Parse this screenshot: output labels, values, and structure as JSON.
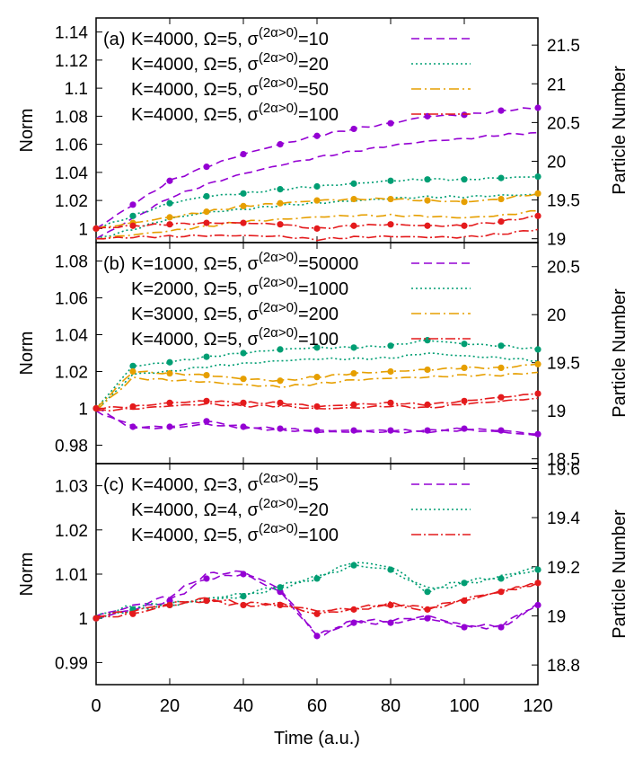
{
  "figure": {
    "xlabel": "Time (a.u.)",
    "x_ticks": [
      0,
      20,
      40,
      60,
      80,
      100,
      120
    ],
    "xlim": [
      0,
      120
    ]
  },
  "chart_data": [
    {
      "type": "line",
      "panel_label": "(a)",
      "ylabel": "Norm",
      "y2label": "Particle Number",
      "ylim": [
        0.99,
        1.15
      ],
      "y_ticks": [
        "1",
        "1.02",
        "1.04",
        "1.06",
        "1.08",
        "1.1",
        "1.12",
        "1.14"
      ],
      "y_tick_values": [
        1,
        1.02,
        1.04,
        1.06,
        1.08,
        1.1,
        1.12,
        1.14
      ],
      "y2lim": [
        18.95,
        21.85
      ],
      "y2_ticks": [
        "19",
        "19.5",
        "20",
        "20.5",
        "21",
        "21.5"
      ],
      "y2_tick_values": [
        19,
        19.5,
        20,
        20.5,
        21,
        21.5
      ],
      "legend_position": "top",
      "series": [
        {
          "label_pre": "K=4000, Ω=5, σ",
          "label_sup": "(2α>0)",
          "label_post": "=10",
          "color": "#9400d3",
          "dash": "9,5",
          "x": [
            0,
            10,
            20,
            30,
            40,
            50,
            60,
            70,
            80,
            90,
            100,
            110,
            120
          ],
          "values": [
            1.0,
            1.017,
            1.034,
            1.044,
            1.053,
            1.06,
            1.066,
            1.071,
            1.075,
            1.08,
            1.081,
            1.084,
            1.086
          ],
          "secondary": [
            19.0,
            19.26,
            19.53,
            19.7,
            19.84,
            19.95,
            20.05,
            20.13,
            20.2,
            20.26,
            20.29,
            20.34,
            20.37
          ]
        },
        {
          "label_pre": "K=4000, Ω=5, σ",
          "label_sup": "(2α>0)",
          "label_post": "=20",
          "color": "#009e73",
          "dash": "2,3",
          "x": [
            0,
            10,
            20,
            30,
            40,
            50,
            60,
            70,
            80,
            90,
            100,
            110,
            120
          ],
          "values": [
            1.0,
            1.009,
            1.018,
            1.023,
            1.025,
            1.028,
            1.03,
            1.032,
            1.034,
            1.035,
            1.035,
            1.036,
            1.037
          ],
          "secondary": [
            19.0,
            19.12,
            19.26,
            19.34,
            19.38,
            19.43,
            19.46,
            19.49,
            19.52,
            19.54,
            19.54,
            19.56,
            19.57
          ]
        },
        {
          "label_pre": "K=4000, Ω=5, σ",
          "label_sup": "(2α>0)",
          "label_post": "=50",
          "color": "#e69f00",
          "dash": "11,4,2,4",
          "x": [
            0,
            10,
            20,
            30,
            40,
            50,
            60,
            70,
            80,
            90,
            100,
            110,
            120
          ],
          "values": [
            1.0,
            1.004,
            1.008,
            1.012,
            1.016,
            1.018,
            1.02,
            1.021,
            1.021,
            1.02,
            1.019,
            1.021,
            1.025
          ],
          "secondary": [
            19.0,
            19.05,
            19.1,
            19.16,
            19.22,
            19.25,
            19.28,
            19.3,
            19.3,
            19.29,
            19.27,
            19.3,
            19.36
          ]
        },
        {
          "label_pre": "K=4000, Ω=5, σ",
          "label_sup": "(2α>0)",
          "label_post": "=100",
          "color": "#e41a1c",
          "dash": "11,3,2,3",
          "x": [
            0,
            10,
            20,
            30,
            40,
            50,
            60,
            70,
            80,
            90,
            100,
            110,
            120
          ],
          "values": [
            1.0,
            1.002,
            1.003,
            1.004,
            1.004,
            1.003,
            1.0,
            1.002,
            1.003,
            1.002,
            1.002,
            1.005,
            1.009
          ],
          "secondary": [
            19.0,
            19.02,
            19.03,
            19.04,
            19.04,
            19.03,
            18.99,
            19.02,
            19.03,
            19.02,
            19.02,
            19.06,
            19.12
          ]
        }
      ]
    },
    {
      "type": "line",
      "panel_label": "(b)",
      "ylabel": "Norm",
      "y2label": "Particle Number",
      "ylim": [
        0.97,
        1.09
      ],
      "y_ticks": [
        "0.98",
        "1",
        "1.02",
        "1.04",
        "1.06",
        "1.08"
      ],
      "y_tick_values": [
        0.98,
        1,
        1.02,
        1.04,
        1.06,
        1.08
      ],
      "y2lim": [
        18.45,
        20.75
      ],
      "y2_ticks": [
        "18.5",
        "19",
        "19.5",
        "20",
        "20.5"
      ],
      "y2_tick_values": [
        18.5,
        19,
        19.5,
        20,
        20.5
      ],
      "legend_position": "top",
      "series": [
        {
          "label_pre": "K=1000, Ω=5, σ",
          "label_sup": "(2α>0)",
          "label_post": "=50000",
          "color": "#9400d3",
          "dash": "9,5",
          "x": [
            0,
            10,
            20,
            30,
            40,
            50,
            60,
            70,
            80,
            90,
            100,
            110,
            120
          ],
          "values": [
            1.0,
            0.99,
            0.99,
            0.993,
            0.99,
            0.989,
            0.988,
            0.988,
            0.988,
            0.988,
            0.989,
            0.988,
            0.986
          ],
          "secondary": [
            19.0,
            18.82,
            18.82,
            18.86,
            18.82,
            18.8,
            18.78,
            18.78,
            18.78,
            18.78,
            18.8,
            18.78,
            18.74
          ]
        },
        {
          "label_pre": "K=2000, Ω=5, σ",
          "label_sup": "(2α>0)",
          "label_post": "=1000",
          "color": "#009e73",
          "dash": "2,3",
          "x": [
            0,
            10,
            20,
            30,
            40,
            50,
            60,
            70,
            80,
            90,
            100,
            110,
            120
          ],
          "values": [
            1.0,
            1.023,
            1.025,
            1.028,
            1.03,
            1.032,
            1.033,
            1.033,
            1.034,
            1.037,
            1.035,
            1.034,
            1.032
          ],
          "secondary": [
            19.0,
            19.38,
            19.41,
            19.46,
            19.49,
            19.52,
            19.54,
            19.54,
            19.55,
            19.6,
            19.57,
            19.55,
            19.52
          ]
        },
        {
          "label_pre": "K=3000, Ω=5, σ",
          "label_sup": "(2α>0)",
          "label_post": "=200",
          "color": "#e69f00",
          "dash": "11,4,2,4",
          "x": [
            0,
            10,
            20,
            30,
            40,
            50,
            60,
            70,
            80,
            90,
            100,
            110,
            120
          ],
          "values": [
            1.0,
            1.02,
            1.019,
            1.018,
            1.016,
            1.015,
            1.017,
            1.019,
            1.02,
            1.021,
            1.022,
            1.022,
            1.024
          ],
          "secondary": [
            19.0,
            19.34,
            19.32,
            19.3,
            19.27,
            19.25,
            19.28,
            19.32,
            19.34,
            19.35,
            19.37,
            19.37,
            19.4
          ]
        },
        {
          "label_pre": "K=4000, Ω=5, σ",
          "label_sup": "(2α>0)",
          "label_post": "=100",
          "color": "#e41a1c",
          "dash": "11,3,2,3",
          "x": [
            0,
            10,
            20,
            30,
            40,
            50,
            60,
            70,
            80,
            90,
            100,
            110,
            120
          ],
          "values": [
            1.0,
            1.001,
            1.003,
            1.004,
            1.003,
            1.003,
            1.001,
            1.002,
            1.003,
            1.002,
            1.004,
            1.006,
            1.008
          ],
          "secondary": [
            19.0,
            19.02,
            19.05,
            19.07,
            19.05,
            19.05,
            19.02,
            19.03,
            19.05,
            19.03,
            19.07,
            19.1,
            19.13
          ]
        }
      ]
    },
    {
      "type": "line",
      "panel_label": "(c)",
      "ylabel": "Norm",
      "y2label": "Particle Number",
      "ylim": [
        0.985,
        1.035
      ],
      "y_ticks": [
        "0.99",
        "1",
        "1.01",
        "1.02",
        "1.03"
      ],
      "y_tick_values": [
        0.99,
        1,
        1.01,
        1.02,
        1.03
      ],
      "y2lim": [
        18.72,
        19.62
      ],
      "y2_ticks": [
        "18.8",
        "19",
        "19.2",
        "19.4",
        "19.6"
      ],
      "y2_tick_values": [
        18.8,
        19,
        19.2,
        19.4,
        19.6
      ],
      "legend_position": "top",
      "series": [
        {
          "label_pre": "K=4000, Ω=3, σ",
          "label_sup": "(2α>0)",
          "label_post": "=5",
          "color": "#9400d3",
          "dash": "9,5",
          "x": [
            0,
            10,
            20,
            30,
            40,
            50,
            60,
            70,
            80,
            90,
            100,
            110,
            120
          ],
          "values": [
            1.0,
            1.002,
            1.004,
            1.009,
            1.01,
            1.006,
            0.996,
            0.999,
            0.999,
            1.0,
            0.998,
            0.998,
            1.003
          ],
          "secondary": [
            19.0,
            19.04,
            19.08,
            19.17,
            19.18,
            19.11,
            18.92,
            18.98,
            18.98,
            19.0,
            18.96,
            18.96,
            19.05
          ]
        },
        {
          "label_pre": "K=4000, Ω=4, σ",
          "label_sup": "(2α>0)",
          "label_post": "=20",
          "color": "#009e73",
          "dash": "2,3",
          "x": [
            0,
            10,
            20,
            30,
            40,
            50,
            60,
            70,
            80,
            90,
            100,
            110,
            120
          ],
          "values": [
            1.0,
            1.002,
            1.003,
            1.004,
            1.005,
            1.007,
            1.009,
            1.012,
            1.011,
            1.006,
            1.008,
            1.009,
            1.011
          ],
          "secondary": [
            19.0,
            19.04,
            19.05,
            19.07,
            19.09,
            19.12,
            19.16,
            19.22,
            19.2,
            19.11,
            19.14,
            19.16,
            19.2
          ]
        },
        {
          "label_pre": "K=4000, Ω=5, σ",
          "label_sup": "(2α>0)",
          "label_post": "=100",
          "color": "#e41a1c",
          "dash": "11,3,2,3",
          "x": [
            0,
            10,
            20,
            30,
            40,
            50,
            60,
            70,
            80,
            90,
            100,
            110,
            120
          ],
          "values": [
            1.0,
            1.001,
            1.003,
            1.004,
            1.003,
            1.003,
            1.001,
            1.002,
            1.003,
            1.002,
            1.004,
            1.006,
            1.008
          ],
          "secondary": [
            19.0,
            19.02,
            19.05,
            19.07,
            19.05,
            19.05,
            19.02,
            19.03,
            19.05,
            19.03,
            19.07,
            19.1,
            19.13
          ]
        }
      ]
    }
  ]
}
